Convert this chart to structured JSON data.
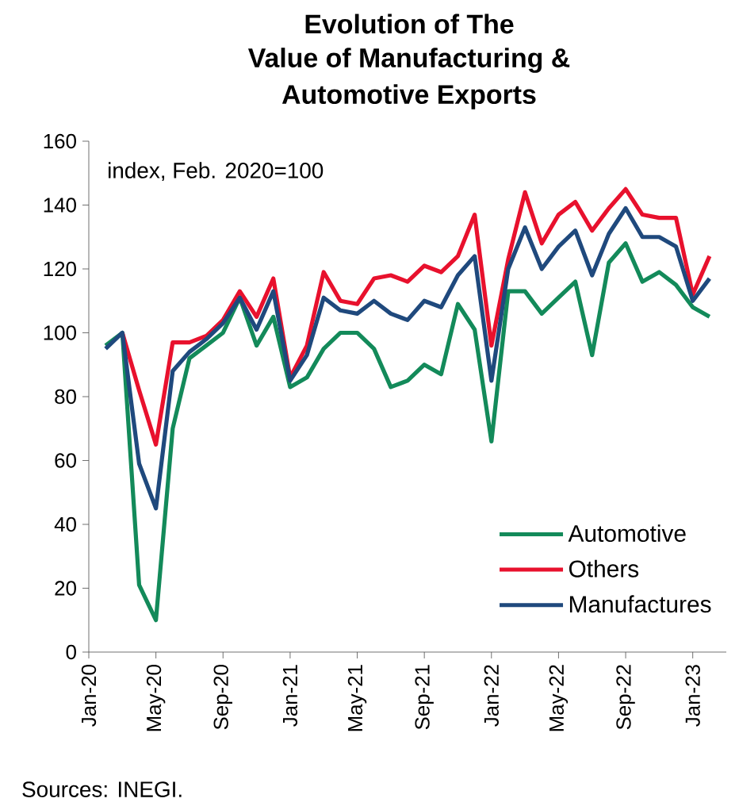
{
  "chart_data": {
    "type": "line",
    "title": "Evolution of The\nValue of Manufacturing &\nAutomotive Exports",
    "annotations": [
      "index, Feb. 2020=100",
      "Sources: INEGI."
    ],
    "x": [
      "2020-02",
      "2020-03",
      "2020-04",
      "2020-05",
      "2020-06",
      "2020-07",
      "2020-08",
      "2020-09",
      "2020-10",
      "2020-11",
      "2020-12",
      "2021-01",
      "2021-02",
      "2021-03",
      "2021-04",
      "2021-05",
      "2021-06",
      "2021-07",
      "2021-08",
      "2021-09",
      "2021-10",
      "2021-11",
      "2021-12",
      "2022-01",
      "2022-02",
      "2022-03",
      "2022-04",
      "2022-05",
      "2022-06",
      "2022-07",
      "2022-08",
      "2022-09",
      "2022-10",
      "2022-11",
      "2022-12",
      "2023-01",
      "2023-02"
    ],
    "series": [
      {
        "name": "Automotive",
        "color": "#138a5a",
        "values": [
          96,
          100,
          21,
          10,
          70,
          92,
          96,
          100,
          111,
          96,
          105,
          83,
          86,
          95,
          100,
          100,
          95,
          83,
          85,
          90,
          87,
          109,
          101,
          66,
          113,
          113,
          106,
          111,
          116,
          93,
          122,
          128,
          116,
          119,
          115,
          108,
          105
        ]
      },
      {
        "name": "Others",
        "color": "#e8112d",
        "values": [
          null,
          100,
          82,
          65,
          97,
          97,
          99,
          104,
          113,
          105,
          117,
          86,
          96,
          119,
          110,
          109,
          117,
          118,
          116,
          121,
          119,
          124,
          137,
          96,
          123,
          144,
          128,
          137,
          141,
          132,
          139,
          145,
          137,
          136,
          136,
          112,
          124
        ]
      },
      {
        "name": "Manufactures",
        "color": "#1f497d",
        "values": [
          95,
          100,
          59,
          45,
          88,
          94,
          98,
          103,
          111,
          101,
          113,
          85,
          93,
          111,
          107,
          106,
          110,
          106,
          104,
          110,
          108,
          118,
          124,
          85,
          120,
          133,
          120,
          127,
          132,
          118,
          131,
          139,
          130,
          130,
          127,
          110,
          117
        ]
      }
    ],
    "xlim": [
      "2020-01",
      "2023-03"
    ],
    "xticks": [
      {
        "value": "2020-01",
        "label": "Jan-20"
      },
      {
        "value": "2020-05",
        "label": "May-20"
      },
      {
        "value": "2020-09",
        "label": "Sep-20"
      },
      {
        "value": "2021-01",
        "label": "Jan-21"
      },
      {
        "value": "2021-05",
        "label": "May-21"
      },
      {
        "value": "2021-09",
        "label": "Sep-21"
      },
      {
        "value": "2022-01",
        "label": "Jan-22"
      },
      {
        "value": "2022-05",
        "label": "May-22"
      },
      {
        "value": "2022-09",
        "label": "Sep-22"
      },
      {
        "value": "2023-01",
        "label": "Jan-23"
      }
    ],
    "ylim": [
      0,
      160
    ],
    "yticks": [
      0,
      20,
      40,
      60,
      80,
      100,
      120,
      140,
      160
    ],
    "legend": "bottom right"
  }
}
